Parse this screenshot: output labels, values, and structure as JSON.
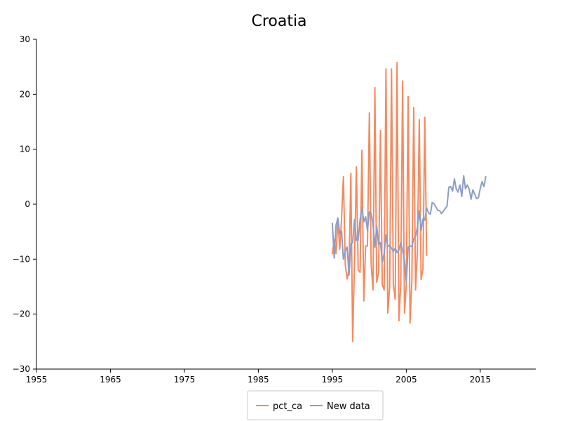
{
  "chart_data": {
    "type": "line",
    "title": "Croatia",
    "xlabel": "",
    "ylabel": "",
    "xlim": [
      1955,
      2022.5
    ],
    "ylim": [
      -30,
      30
    ],
    "x_ticks": [
      1955,
      1965,
      1975,
      1985,
      1995,
      2005,
      2015
    ],
    "y_ticks": [
      -30,
      -20,
      -10,
      0,
      10,
      20,
      30
    ],
    "x_tick_labels": [
      "1955",
      "1965",
      "1975",
      "1985",
      "1995",
      "2005",
      "2015"
    ],
    "y_tick_labels": [
      "−30",
      "−20",
      "−10",
      "0",
      "10",
      "20",
      "30"
    ],
    "grid": false,
    "legend_position": "bottom-center",
    "series": [
      {
        "name": "pct_ca",
        "color": "#f58a5f",
        "points": [
          [
            1995.0,
            -9.1
          ],
          [
            1995.25,
            -6.4
          ],
          [
            1995.5,
            -9.0
          ],
          [
            1995.75,
            -2.9
          ],
          [
            1996.0,
            -8.2
          ],
          [
            1996.25,
            -2.5
          ],
          [
            1996.5,
            5.0
          ],
          [
            1996.75,
            -11.0
          ],
          [
            1997.0,
            -13.6
          ],
          [
            1997.25,
            -12.0
          ],
          [
            1997.5,
            5.6
          ],
          [
            1997.75,
            -25.0
          ],
          [
            1998.0,
            -10.0
          ],
          [
            1998.25,
            6.8
          ],
          [
            1998.5,
            -12.0
          ],
          [
            1998.75,
            -12.4
          ],
          [
            1999.0,
            9.8
          ],
          [
            1999.25,
            -17.6
          ],
          [
            1999.5,
            -7.6
          ],
          [
            1999.75,
            -7.6
          ],
          [
            2000.0,
            16.6
          ],
          [
            2000.25,
            -11.0
          ],
          [
            2000.5,
            -15.6
          ],
          [
            2000.75,
            21.2
          ],
          [
            2001.0,
            -14.2
          ],
          [
            2001.25,
            -12.4
          ],
          [
            2001.5,
            13.4
          ],
          [
            2001.75,
            -14.6
          ],
          [
            2002.0,
            -15.6
          ],
          [
            2002.25,
            24.6
          ],
          [
            2002.5,
            -19.8
          ],
          [
            2002.75,
            -15.0
          ],
          [
            2003.0,
            24.6
          ],
          [
            2003.25,
            -14.6
          ],
          [
            2003.5,
            -17.3
          ],
          [
            2003.75,
            25.8
          ],
          [
            2004.0,
            -21.2
          ],
          [
            2004.25,
            -14.4
          ],
          [
            2004.5,
            22.4
          ],
          [
            2004.75,
            -19.8
          ],
          [
            2005.0,
            -14.6
          ],
          [
            2005.25,
            19.6
          ],
          [
            2005.5,
            -21.6
          ],
          [
            2005.75,
            -14.0
          ],
          [
            2006.0,
            17.6
          ],
          [
            2006.25,
            -15.6
          ],
          [
            2006.5,
            -8.6
          ],
          [
            2006.75,
            15.4
          ],
          [
            2007.0,
            -13.7
          ],
          [
            2007.25,
            -11.8
          ],
          [
            2007.5,
            15.8
          ],
          [
            2007.75,
            -9.4
          ]
        ]
      },
      {
        "name": "New data",
        "color": "#8c9dc9",
        "points": [
          [
            1995.0,
            -3.4
          ],
          [
            1995.25,
            -9.8
          ],
          [
            1995.5,
            -3.8
          ],
          [
            1995.75,
            -2.5
          ],
          [
            1996.0,
            -5.4
          ],
          [
            1996.25,
            -4.9
          ],
          [
            1996.5,
            -10.0
          ],
          [
            1996.75,
            -8.5
          ],
          [
            1997.0,
            -7.8
          ],
          [
            1997.25,
            -12.9
          ],
          [
            1997.5,
            -7.2
          ],
          [
            1997.75,
            -7.0
          ],
          [
            1998.0,
            -2.8
          ],
          [
            1998.25,
            -6.6
          ],
          [
            1998.5,
            -6.5
          ],
          [
            1998.75,
            -2.8
          ],
          [
            1999.0,
            -0.6
          ],
          [
            1999.25,
            -3.2
          ],
          [
            1999.5,
            -2.3
          ],
          [
            1999.75,
            -4.8
          ],
          [
            2000.0,
            -1.4
          ],
          [
            2000.25,
            -1.7
          ],
          [
            2000.5,
            -3.6
          ],
          [
            2000.75,
            -7.8
          ],
          [
            2001.0,
            -4.1
          ],
          [
            2001.25,
            -7.3
          ],
          [
            2001.5,
            -7.0
          ],
          [
            2001.75,
            -10.5
          ],
          [
            2002.0,
            -9.0
          ],
          [
            2002.25,
            -5.6
          ],
          [
            2002.5,
            -7.7
          ],
          [
            2002.75,
            -7.5
          ],
          [
            2003.0,
            -8.0
          ],
          [
            2003.25,
            -8.6
          ],
          [
            2003.5,
            -8.0
          ],
          [
            2003.75,
            -8.8
          ],
          [
            2004.0,
            -8.3
          ],
          [
            2004.25,
            -7.0
          ],
          [
            2004.5,
            -8.4
          ],
          [
            2004.75,
            -10.2
          ],
          [
            2005.0,
            -14.2
          ],
          [
            2005.25,
            -7.8
          ],
          [
            2005.5,
            -7.6
          ],
          [
            2005.75,
            -7.7
          ],
          [
            2006.0,
            -6.3
          ],
          [
            2006.25,
            -5.8
          ],
          [
            2006.5,
            -4.2
          ],
          [
            2006.75,
            -1.2
          ],
          [
            2007.0,
            -4.8
          ],
          [
            2007.25,
            -2.7
          ],
          [
            2007.5,
            -2.9
          ],
          [
            2007.75,
            -0.7
          ],
          [
            2008.0,
            -1.6
          ],
          [
            2008.25,
            -1.8
          ],
          [
            2008.5,
            0.3
          ],
          [
            2008.75,
            0.1
          ],
          [
            2009.0,
            -0.5
          ],
          [
            2009.25,
            -1.1
          ],
          [
            2009.5,
            -1.2
          ],
          [
            2009.75,
            -1.7
          ],
          [
            2010.0,
            -1.3
          ],
          [
            2010.25,
            -0.8
          ],
          [
            2010.5,
            -0.4
          ],
          [
            2010.75,
            3.1
          ],
          [
            2011.0,
            3.2
          ],
          [
            2011.25,
            2.4
          ],
          [
            2011.5,
            4.6
          ],
          [
            2011.75,
            2.8
          ],
          [
            2012.0,
            2.2
          ],
          [
            2012.25,
            3.5
          ],
          [
            2012.5,
            1.4
          ],
          [
            2012.75,
            5.2
          ],
          [
            2013.0,
            2.8
          ],
          [
            2013.25,
            3.5
          ],
          [
            2013.5,
            2.7
          ],
          [
            2013.75,
            0.9
          ],
          [
            2014.0,
            2.6
          ],
          [
            2014.25,
            1.8
          ],
          [
            2014.5,
            1.0
          ],
          [
            2014.75,
            1.2
          ],
          [
            2015.0,
            2.9
          ],
          [
            2015.25,
            4.1
          ],
          [
            2015.5,
            3.2
          ],
          [
            2015.75,
            5.1
          ]
        ]
      }
    ]
  }
}
